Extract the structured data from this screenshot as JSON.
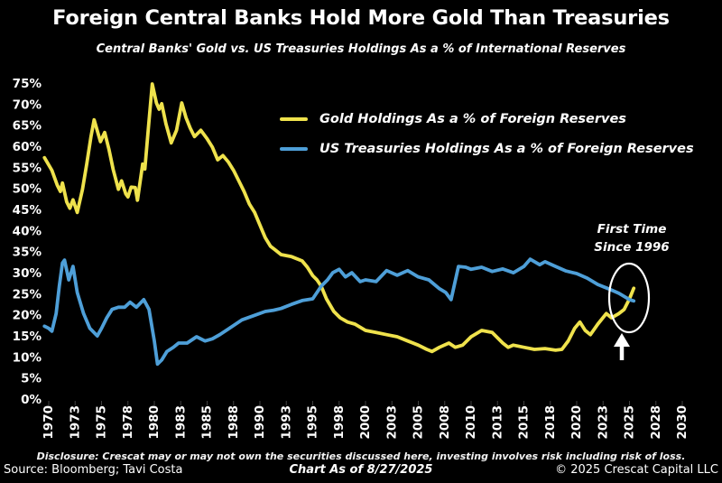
{
  "header": {
    "title": "Foreign Central Banks Hold More Gold Than Treasuries",
    "subtitle": "Central Banks' Gold vs. US Treasuries Holdings As a % of International Reserves"
  },
  "legend": {
    "gold": {
      "label": "Gold Holdings As a % of Foreign Reserves",
      "color": "#EFE24C"
    },
    "treasuries": {
      "label": "US Treasuries Holdings As a % of Foreign Reserves",
      "color": "#4E9FD8"
    }
  },
  "annotation": {
    "line1": "First Time",
    "line2": "Since 1996"
  },
  "footer": {
    "disclosure": "Disclosure: Crescat may or may not own the securities discussed here, investing involves risk including risk of loss.",
    "source": "Source: Bloomberg; Tavi Costa",
    "chart_as_of": "Chart As of 8/27/2025",
    "copyright": "© 2025 Crescat Capital LLC"
  },
  "chart_data": {
    "type": "line",
    "title": "Foreign Central Banks Hold More Gold Than Treasuries",
    "subtitle": "Central Banks' Gold vs. US Treasuries Holdings As a % of International Reserves",
    "xlabel": "",
    "ylabel": "",
    "ylim": [
      0,
      75
    ],
    "xlim": [
      1969.5,
      2031
    ],
    "grid": false,
    "legend_position": "upper center",
    "background": "#000000",
    "text_color": "#FFFFFF",
    "y_tick_labels": [
      "0%",
      "5%",
      "10%",
      "15%",
      "20%",
      "25%",
      "30%",
      "35%",
      "40%",
      "45%",
      "50%",
      "55%",
      "60%",
      "65%",
      "70%",
      "75%"
    ],
    "x_tick_years": [
      1970,
      1972.5,
      1975,
      1977.5,
      1980,
      1982.5,
      1985,
      1987.5,
      1990,
      1992.5,
      1995,
      1997.5,
      2000,
      2002.5,
      2005,
      2007.5,
      2010,
      2012.5,
      2015,
      2017.5,
      2020,
      2022.5,
      2025,
      2027.5,
      2030
    ],
    "x_tick_labels": [
      "1970",
      "1973",
      "1975",
      "1978",
      "1980",
      "1983",
      "1985",
      "1988",
      "1990",
      "1993",
      "1995",
      "1998",
      "2000",
      "2003",
      "2005",
      "2008",
      "2010",
      "2013",
      "2015",
      "2018",
      "2020",
      "2023",
      "2025",
      "2028",
      "2030"
    ],
    "annotation": {
      "text": "First Time Since 1996",
      "x": 2025.3,
      "y_gold": 26.5,
      "y_treasuries": 23.5
    },
    "series": [
      {
        "name": "Gold Holdings As a % of Foreign Reserves",
        "color": "#EFE24C",
        "points": [
          [
            1969.6,
            57.5
          ],
          [
            1970.3,
            54.5
          ],
          [
            1970.8,
            51
          ],
          [
            1971.1,
            49.5
          ],
          [
            1971.3,
            51.5
          ],
          [
            1971.7,
            47
          ],
          [
            1972.0,
            45.5
          ],
          [
            1972.3,
            47.5
          ],
          [
            1972.7,
            44.5
          ],
          [
            1973.2,
            50
          ],
          [
            1973.6,
            56
          ],
          [
            1974.0,
            62.5
          ],
          [
            1974.3,
            66.5
          ],
          [
            1974.9,
            61.3
          ],
          [
            1975.3,
            63.5
          ],
          [
            1975.7,
            59.5
          ],
          [
            1976.1,
            54.7
          ],
          [
            1976.6,
            50
          ],
          [
            1976.9,
            52
          ],
          [
            1977.3,
            48.9
          ],
          [
            1977.5,
            48.2
          ],
          [
            1977.8,
            50.5
          ],
          [
            1978.2,
            50.4
          ],
          [
            1978.4,
            47.4
          ],
          [
            1978.9,
            56
          ],
          [
            1979.1,
            54.8
          ],
          [
            1979.45,
            65
          ],
          [
            1979.8,
            75
          ],
          [
            1980.2,
            70.5
          ],
          [
            1980.45,
            69
          ],
          [
            1980.7,
            70.3
          ],
          [
            1981.1,
            65.5
          ],
          [
            1981.6,
            61
          ],
          [
            1982.1,
            64
          ],
          [
            1982.6,
            70.5
          ],
          [
            1983.0,
            67
          ],
          [
            1983.4,
            64.5
          ],
          [
            1983.8,
            62.5
          ],
          [
            1984.4,
            64
          ],
          [
            1985.0,
            62
          ],
          [
            1985.5,
            60
          ],
          [
            1986.0,
            57
          ],
          [
            1986.5,
            58
          ],
          [
            1987.0,
            56.5
          ],
          [
            1987.5,
            54.5
          ],
          [
            1988.0,
            52
          ],
          [
            1988.5,
            49.5
          ],
          [
            1989.0,
            46.5
          ],
          [
            1989.5,
            44.5
          ],
          [
            1990.0,
            41.5
          ],
          [
            1990.5,
            38.5
          ],
          [
            1991.0,
            36.5
          ],
          [
            1991.5,
            35.5
          ],
          [
            1992.0,
            34.5
          ],
          [
            1993.0,
            34
          ],
          [
            1994.0,
            33
          ],
          [
            1994.5,
            31.5
          ],
          [
            1995.0,
            29.5
          ],
          [
            1995.4,
            28.5
          ],
          [
            1995.8,
            27
          ],
          [
            1996.3,
            24
          ],
          [
            1997.0,
            21
          ],
          [
            1997.6,
            19.5
          ],
          [
            1998.3,
            18.5
          ],
          [
            1999.0,
            18
          ],
          [
            2000.0,
            16.5
          ],
          [
            2001.0,
            16
          ],
          [
            2002.0,
            15.5
          ],
          [
            2003.0,
            15
          ],
          [
            2004.0,
            14
          ],
          [
            2005.0,
            13
          ],
          [
            2005.8,
            12
          ],
          [
            2006.3,
            11.5
          ],
          [
            2007.0,
            12.5
          ],
          [
            2007.9,
            13.5
          ],
          [
            2008.5,
            12.5
          ],
          [
            2009.2,
            13
          ],
          [
            2010.0,
            15
          ],
          [
            2011.0,
            16.5
          ],
          [
            2012.0,
            16
          ],
          [
            2013.0,
            13.5
          ],
          [
            2013.5,
            12.5
          ],
          [
            2014.0,
            13
          ],
          [
            2015.0,
            12.5
          ],
          [
            2016.0,
            12
          ],
          [
            2017.0,
            12.2
          ],
          [
            2018.0,
            11.8
          ],
          [
            2018.6,
            12
          ],
          [
            2019.2,
            14
          ],
          [
            2019.8,
            17
          ],
          [
            2020.3,
            18.5
          ],
          [
            2020.8,
            16.5
          ],
          [
            2021.3,
            15.5
          ],
          [
            2022.0,
            18
          ],
          [
            2022.8,
            20.5
          ],
          [
            2023.3,
            19.5
          ],
          [
            2024.0,
            20.5
          ],
          [
            2024.5,
            21.5
          ],
          [
            2025.0,
            24
          ],
          [
            2025.4,
            26.5
          ]
        ]
      },
      {
        "name": "US Treasuries Holdings As a % of Foreign Reserves",
        "color": "#4E9FD8",
        "points": [
          [
            1969.6,
            17.5
          ],
          [
            1970.0,
            17
          ],
          [
            1970.3,
            16.3
          ],
          [
            1970.7,
            20.5
          ],
          [
            1971.0,
            27
          ],
          [
            1971.3,
            32.5
          ],
          [
            1971.5,
            33.2
          ],
          [
            1971.9,
            28.5
          ],
          [
            1972.3,
            31.7
          ],
          [
            1972.7,
            25.5
          ],
          [
            1973.3,
            20.5
          ],
          [
            1973.9,
            17
          ],
          [
            1974.6,
            15.2
          ],
          [
            1975.0,
            17
          ],
          [
            1975.5,
            19.5
          ],
          [
            1976.0,
            21.5
          ],
          [
            1976.6,
            22
          ],
          [
            1977.2,
            22
          ],
          [
            1977.7,
            23.2
          ],
          [
            1978.3,
            22
          ],
          [
            1979.0,
            23.8
          ],
          [
            1979.5,
            21.5
          ],
          [
            1980.0,
            14
          ],
          [
            1980.3,
            8.5
          ],
          [
            1980.7,
            9.5
          ],
          [
            1981.2,
            11.5
          ],
          [
            1981.8,
            12.5
          ],
          [
            1982.3,
            13.5
          ],
          [
            1983.1,
            13.5
          ],
          [
            1984.0,
            15
          ],
          [
            1984.8,
            14
          ],
          [
            1985.5,
            14.5
          ],
          [
            1986.2,
            15.5
          ],
          [
            1987.1,
            17
          ],
          [
            1988.3,
            19
          ],
          [
            1989.4,
            20
          ],
          [
            1990.5,
            21
          ],
          [
            1991.3,
            21.3
          ],
          [
            1992.0,
            21.7
          ],
          [
            1993.0,
            22.7
          ],
          [
            1994.0,
            23.6
          ],
          [
            1995.0,
            24
          ],
          [
            1995.8,
            27
          ],
          [
            1996.4,
            28.5
          ],
          [
            1996.9,
            30.2
          ],
          [
            1997.5,
            31
          ],
          [
            1998.1,
            29.2
          ],
          [
            1998.7,
            30.2
          ],
          [
            1999.5,
            28.1
          ],
          [
            2000.0,
            28.5
          ],
          [
            2001.0,
            28.1
          ],
          [
            2002.0,
            30.7
          ],
          [
            2003.0,
            29.6
          ],
          [
            2004.0,
            30.7
          ],
          [
            2005.0,
            29.2
          ],
          [
            2006.0,
            28.5
          ],
          [
            2007.0,
            26.4
          ],
          [
            2007.6,
            25.5
          ],
          [
            2008.1,
            23.8
          ],
          [
            2008.8,
            31.7
          ],
          [
            2009.5,
            31.5
          ],
          [
            2010.0,
            31
          ],
          [
            2011.0,
            31.5
          ],
          [
            2012.0,
            30.5
          ],
          [
            2013.0,
            31.1
          ],
          [
            2014.0,
            30.2
          ],
          [
            2015.0,
            31.7
          ],
          [
            2015.6,
            33.4
          ],
          [
            2016.5,
            32.1
          ],
          [
            2017.0,
            32.8
          ],
          [
            2018.0,
            31.7
          ],
          [
            2019.0,
            30.6
          ],
          [
            2020.0,
            30
          ],
          [
            2021.0,
            28.9
          ],
          [
            2022.0,
            27.4
          ],
          [
            2023.0,
            26.4
          ],
          [
            2024.0,
            25.3
          ],
          [
            2025.0,
            23.8
          ],
          [
            2025.4,
            23.5
          ]
        ]
      }
    ]
  }
}
